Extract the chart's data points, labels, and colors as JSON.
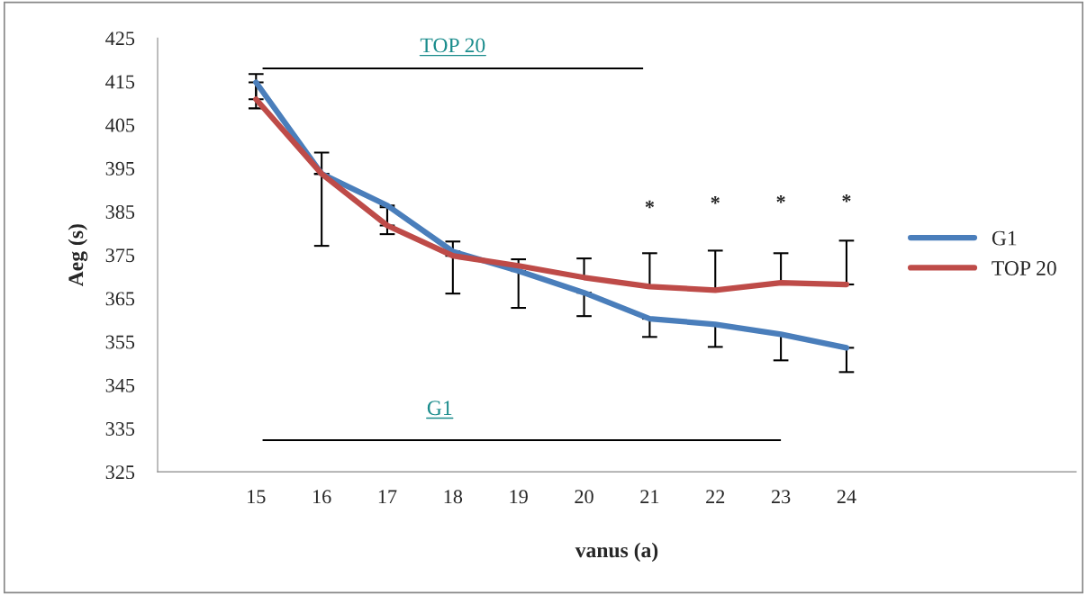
{
  "chart_data": {
    "type": "line",
    "xlabel": "vanus (a)",
    "ylabel": "Aeg (s)",
    "categories": [
      null,
      "15",
      "16",
      "17",
      "18",
      "19",
      "20",
      "21",
      "22",
      "23",
      "24",
      null,
      null,
      null
    ],
    "series": [
      {
        "name": "G1",
        "color": "#4a7ebb",
        "values": [
          null,
          414.8,
          393.7,
          386.4,
          375.8,
          371.3,
          366.3,
          360.3,
          359.0,
          356.7,
          353.6,
          null,
          null,
          null
        ],
        "errors": [
          null,
          [
            408.8,
            414.8
          ],
          [
            377.1,
            393.7
          ],
          [
            379.8,
            386.4
          ],
          [
            366.1,
            375.8
          ],
          [
            362.8,
            371.3
          ],
          [
            360.9,
            366.3
          ],
          [
            356.1,
            360.3
          ],
          [
            353.8,
            359.0
          ],
          [
            350.7,
            356.7
          ],
          [
            348.0,
            353.6
          ],
          null,
          null,
          null
        ]
      },
      {
        "name": "TOP 20",
        "color": "#be4b48",
        "values": [
          null,
          410.9,
          393.7,
          381.8,
          374.8,
          372.5,
          369.8,
          367.7,
          366.9,
          368.6,
          368.2,
          null,
          null,
          null
        ],
        "errors": [
          null,
          [
            410.9,
            416.7
          ],
          [
            393.7,
            398.6
          ],
          [
            381.8,
            386.0
          ],
          [
            374.8,
            378.1
          ],
          [
            372.5,
            374.0
          ],
          [
            369.8,
            374.2
          ],
          [
            367.7,
            375.4
          ],
          [
            366.9,
            376.0
          ],
          [
            368.6,
            375.4
          ],
          [
            368.2,
            378.3
          ],
          null,
          null,
          null
        ]
      }
    ],
    "ylim": [
      325,
      425
    ],
    "yticks": [
      325,
      335,
      345,
      355,
      365,
      375,
      385,
      395,
      405,
      415,
      425
    ],
    "grid": false,
    "legend": "right",
    "marker": "none",
    "line_style": "solid",
    "annotations": [
      "TOP 20",
      "G1",
      "*",
      "*",
      "*",
      "*"
    ]
  }
}
